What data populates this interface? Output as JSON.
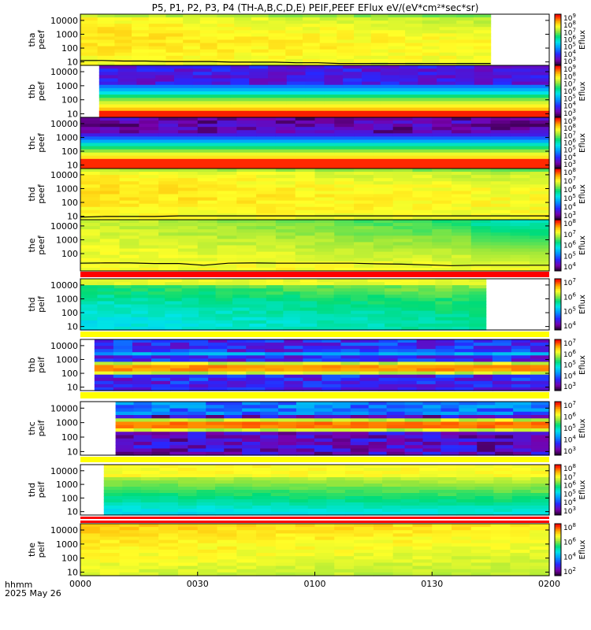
{
  "title": "P5, P1, P2, P3, P4 (TH-A,B,C,D,E) PEIF,PEEF EFlux eV/(eV*cm²*sec*sr)",
  "footer": {
    "line1": "hhmm",
    "line2": "2025 May 26"
  },
  "colors": {
    "bar_white": "#ffffff",
    "bar_yellow": "#ffff00",
    "bar_red": "#ff0000",
    "curve": "#000000"
  },
  "chart_data": {
    "type": "heatmap",
    "x_ticks": [
      "0000",
      "0030",
      "0100",
      "0130",
      "0200"
    ],
    "x_range": [
      "00:00",
      "02:00"
    ],
    "panels": [
      {
        "probe": "tha",
        "species": "peef",
        "ylabel": "tha\npeef",
        "yticks": [
          "10000",
          "1000",
          "100",
          "10"
        ],
        "cbar_label": "Eflux",
        "cbar_exp": [
          3,
          4,
          5,
          6,
          7,
          8,
          9
        ],
        "status_bar": "white",
        "data_span": [
          0,
          1.75
        ],
        "palette": "high_yellow",
        "curve_energy": [
          12,
          12,
          11,
          11,
          10,
          10,
          10,
          9,
          9,
          9,
          8,
          8,
          7,
          7,
          7,
          7,
          7,
          7,
          7,
          7
        ]
      },
      {
        "probe": "thb",
        "species": "peef",
        "ylabel": "thb\npeef",
        "yticks": [
          "10000",
          "1000",
          "100",
          "10"
        ],
        "cbar_label": "Eflux",
        "cbar_exp": [
          3,
          4,
          5,
          6,
          7,
          8,
          9
        ],
        "status_bar": "white",
        "data_span": [
          0.08,
          2.0
        ],
        "palette": "bands_lowred"
      },
      {
        "probe": "thc",
        "species": "peef",
        "ylabel": "thc\npeef",
        "yticks": [
          "10000",
          "1000",
          "100",
          "10"
        ],
        "cbar_label": "Eflux",
        "cbar_exp": [
          3,
          4,
          5,
          6,
          7,
          8,
          9
        ],
        "status_bar": "white",
        "data_span": [
          0,
          2.0
        ],
        "palette": "bands_lowred_dark"
      },
      {
        "probe": "thd",
        "species": "peef",
        "ylabel": "thd\npeef",
        "yticks": [
          "10000",
          "1000",
          "100",
          "10"
        ],
        "cbar_label": "Eflux",
        "cbar_exp": [
          3,
          4,
          5,
          6,
          7,
          8
        ],
        "status_bar": "white",
        "data_span": [
          0,
          2.0
        ],
        "palette": "high_yellow",
        "curve_energy": [
          8,
          9,
          9,
          9,
          10,
          10,
          10,
          10,
          10,
          10,
          10,
          10,
          10,
          10,
          10,
          10,
          10,
          10,
          10,
          10
        ]
      },
      {
        "probe": "the",
        "species": "peef",
        "ylabel": "the\npeef",
        "yticks": [
          "10000",
          "1000",
          "100"
        ],
        "cbar_label": "Eflux",
        "cbar_exp": [
          4,
          5,
          6,
          7,
          8
        ],
        "status_bar": "red",
        "data_span": [
          0,
          2.0
        ],
        "palette": "yellow_green_fade",
        "curve_energy": [
          20,
          21,
          21,
          19,
          19,
          14,
          20,
          21,
          20,
          20,
          20,
          20,
          18,
          17,
          15,
          13,
          14,
          14,
          14,
          14
        ]
      },
      {
        "probe": "thd",
        "species": "peif",
        "ylabel": "thd\npeif",
        "yticks": [
          "10000",
          "1000",
          "100",
          "10"
        ],
        "cbar_label": "Eflux",
        "cbar_exp": [
          4,
          5,
          6,
          7
        ],
        "status_bar": "yellow",
        "data_span": [
          0,
          1.73
        ],
        "palette": "ion_cyan"
      },
      {
        "probe": "thb",
        "species": "peif",
        "ylabel": "thb\npeif",
        "yticks": [
          "10000",
          "1000",
          "100",
          "10"
        ],
        "cbar_label": "Eflux",
        "cbar_exp": [
          3,
          4,
          5,
          6,
          7
        ],
        "status_bar": "yellow",
        "data_span": [
          0.06,
          2.0
        ],
        "palette": "ion_bands"
      },
      {
        "probe": "thc",
        "species": "peif",
        "ylabel": "thc\npeif",
        "yticks": [
          "10000",
          "1000",
          "100",
          "10"
        ],
        "cbar_label": "Eflux",
        "cbar_exp": [
          3,
          4,
          5,
          6,
          7
        ],
        "status_bar": "yellow",
        "data_span": [
          0.15,
          2.0
        ],
        "palette": "ion_bands_dark"
      },
      {
        "probe": "thd",
        "species": "peif",
        "ylabel": "thd\npeif",
        "yticks": [
          "10000",
          "1000",
          "100",
          "10"
        ],
        "cbar_label": "Eflux",
        "cbar_exp": [
          3,
          4,
          5,
          6,
          7,
          8
        ],
        "status_bar": "red",
        "data_span": [
          0.1,
          2.0
        ],
        "palette": "ion_cyan_yellow"
      },
      {
        "probe": "the",
        "species": "peif",
        "ylabel": "the\npeif",
        "yticks": [
          "10000",
          "1000",
          "100",
          "10"
        ],
        "cbar_label": "Eflux",
        "cbar_exp": [
          2,
          4,
          6,
          8
        ],
        "status_bar": "none",
        "data_span": [
          0,
          2.0
        ],
        "palette": "ion_orange"
      }
    ]
  }
}
